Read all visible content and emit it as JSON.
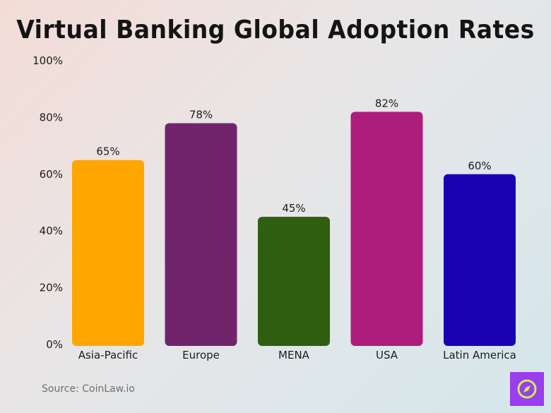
{
  "title": "Virtual Banking Global Adoption Rates",
  "source": "Source: CoinLaw.io",
  "logo_icon": "compass-icon",
  "colors": {
    "Asia-Pacific": "#ffa602",
    "Europe": "#71246c",
    "MENA": "#305e10",
    "USA": "#ad1d7b",
    "Latin America": "#1a01b1",
    "logo_bg": "#9b3df0",
    "logo_fg": "#c6f24a"
  },
  "chart_data": {
    "type": "bar",
    "title": "Virtual Banking Global Adoption Rates",
    "categories": [
      "Asia-Pacific",
      "Europe",
      "MENA",
      "USA",
      "Latin America"
    ],
    "values": [
      65,
      78,
      45,
      82,
      60
    ],
    "value_labels": [
      "65%",
      "78%",
      "45%",
      "82%",
      "60%"
    ],
    "ylim": [
      0,
      100
    ],
    "yticks": [
      0,
      20,
      40,
      60,
      80,
      100
    ],
    "ytick_labels": [
      "0%",
      "20%",
      "40%",
      "60%",
      "80%",
      "100%"
    ],
    "xlabel": "",
    "ylabel": "",
    "grid": false,
    "legend": "none"
  }
}
